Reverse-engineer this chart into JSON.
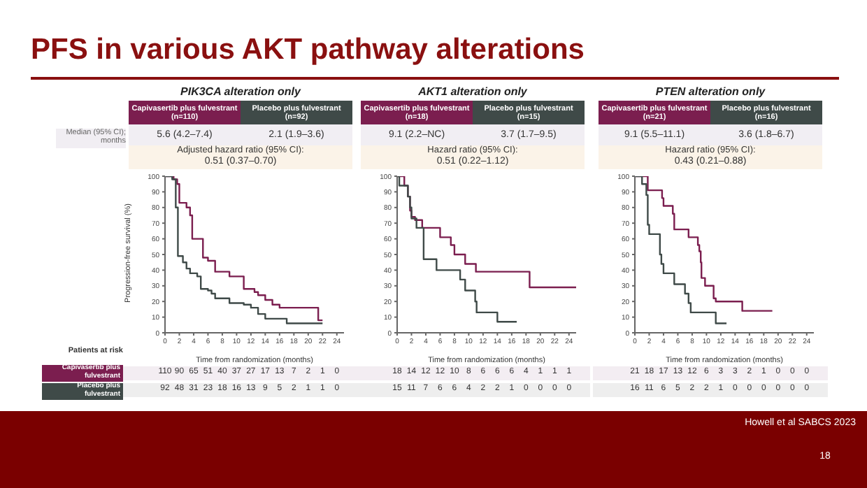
{
  "chart_data": [
    {
      "type": "step",
      "title": "PFS in various AKT pathway alterations",
      "subtitle": "PIK3CA alteration only",
      "xlabel": "Time from randomization (months)",
      "ylabel": "Progression-free survival (%)",
      "legend": "top",
      "xlim": [
        0,
        25
      ],
      "xticks": [
        0,
        2,
        4,
        6,
        8,
        10,
        12,
        14,
        16,
        18,
        20,
        22,
        24
      ],
      "ylim": [
        0,
        100
      ],
      "yticks": [
        0,
        10,
        20,
        30,
        40,
        50,
        60,
        70,
        80,
        90,
        100
      ],
      "series": [
        {
          "name": "Capivasertib plus fulvestrant (n=110)",
          "color": "#7b1e4f",
          "x": [
            0,
            1.2,
            1.7,
            2,
            3,
            3.5,
            3.8,
            5.3,
            6,
            7,
            9,
            11,
            12.5,
            13,
            14,
            15,
            16,
            21.4,
            22
          ],
          "values": [
            100,
            98,
            95,
            83,
            80,
            75,
            60,
            48,
            46,
            39,
            36,
            28,
            26,
            24,
            21,
            18,
            16,
            8,
            8
          ]
        },
        {
          "name": "Placebo plus fulvestrant (n=92)",
          "color": "#3f4a48",
          "x": [
            0,
            1,
            1.5,
            1.8,
            2.5,
            3,
            3.5,
            4.5,
            5,
            6,
            6.5,
            7,
            9,
            11,
            12,
            13,
            14,
            16,
            17,
            19.5,
            22
          ],
          "values": [
            100,
            98,
            80,
            49,
            45,
            41,
            38,
            36,
            28,
            27,
            25,
            22,
            19,
            18,
            16,
            12,
            9,
            9,
            6,
            6,
            6
          ]
        }
      ],
      "annotations": [
        "5.6 (4.2–7.4)",
        "2.1 (1.9–3.6)",
        "Adjusted hazard ratio (95% CI):",
        "0.51 (0.37–0.70)",
        "110 90 65 51 40 37 27 17 13 7 2 1 0",
        "92 48 31 23 18 16 13 9 5 2 1 1 0",
        "Median (95% CI); months",
        "Patients at risk",
        "Capivasertib plus fulvestrant",
        "Placebo plus fulvestrant",
        "Howell et al SABCS 2023",
        "18"
      ]
    },
    {
      "type": "step",
      "subtitle": "AKT1 alteration only",
      "xlabel": "Time from randomization (months)",
      "legend": "top",
      "xlim": [
        0,
        25
      ],
      "xticks": [
        0,
        2,
        4,
        6,
        8,
        10,
        12,
        14,
        16,
        18,
        20,
        22,
        24
      ],
      "ylim": [
        0,
        100
      ],
      "yticks": [
        0,
        10,
        20,
        30,
        40,
        50,
        60,
        70,
        80,
        90,
        100
      ],
      "series": [
        {
          "name": "Capivasertib plus fulvestrant (n=18)",
          "color": "#7b1e4f",
          "x": [
            0,
            1,
            1.5,
            1.8,
            2,
            2.5,
            3.5,
            6,
            7.5,
            8,
            9.5,
            11,
            18.5,
            25
          ],
          "values": [
            100,
            94,
            87,
            78,
            74,
            72,
            67,
            61,
            56,
            50,
            44,
            39,
            29,
            29
          ]
        },
        {
          "name": "Placebo plus fulvestrant (n=15)",
          "color": "#3f4a48",
          "x": [
            0,
            0.3,
            1.5,
            1.8,
            2,
            2.7,
            3.7,
            5.5,
            8.8,
            9.5,
            10.9,
            11.1,
            14,
            16.7
          ],
          "values": [
            100,
            94,
            87,
            80,
            73,
            67,
            47,
            40,
            34,
            27,
            20,
            13,
            7,
            7
          ]
        }
      ],
      "annotations": [
        "9.1 (2.2–NC)",
        "3.7 (1.7–9.5)",
        "Hazard ratio  (95% CI):",
        "0.51 (0.22–1.12)",
        "18 14 12 12 10 8 6 6 6 4 1 1 1",
        "15 11 7 6 6 4 2 2 1 0 0 0 0"
      ]
    },
    {
      "type": "step",
      "subtitle": "PTEN alteration only",
      "xlabel": "Time from randomization (months)",
      "legend": "top",
      "xlim": [
        0,
        25
      ],
      "xticks": [
        0,
        2,
        4,
        6,
        8,
        10,
        12,
        14,
        16,
        18,
        20,
        22,
        24
      ],
      "ylim": [
        0,
        100
      ],
      "yticks": [
        0,
        10,
        20,
        30,
        40,
        50,
        60,
        70,
        80,
        90,
        100
      ],
      "series": [
        {
          "name": "Capivasertib plus fulvestrant (n=21)",
          "color": "#7b1e4f",
          "x": [
            0,
            1.8,
            3.8,
            4,
            5.3,
            5.5,
            7.5,
            8.8,
            9,
            9.2,
            9.3,
            9.8,
            11,
            11.3,
            15,
            19.2
          ],
          "values": [
            100,
            91,
            86,
            81,
            76,
            66,
            61,
            56,
            52,
            45,
            35,
            30,
            22,
            20,
            14,
            14
          ]
        },
        {
          "name": "Placebo plus fulvestrant (n=16)",
          "color": "#3f4a48",
          "x": [
            0,
            1,
            1.6,
            1.8,
            2,
            3.5,
            3.7,
            4,
            5.5,
            7,
            7.5,
            7.8,
            11,
            11.3,
            12.8
          ],
          "values": [
            100,
            95,
            88,
            69,
            63,
            50,
            44,
            38,
            31,
            25,
            19,
            13,
            13,
            6,
            6
          ]
        }
      ],
      "annotations": [
        "9.1 (5.5–11.1)",
        "3.6 (1.8–6.7)",
        "Hazard ratio  (95% CI):",
        "0.43 (0.21–0.88)",
        "21 18 17 13 12 6 3 3 2 1 0 0 0",
        "16 11 6 5 2 2 1 0 0 0 0 0 0"
      ]
    }
  ]
}
